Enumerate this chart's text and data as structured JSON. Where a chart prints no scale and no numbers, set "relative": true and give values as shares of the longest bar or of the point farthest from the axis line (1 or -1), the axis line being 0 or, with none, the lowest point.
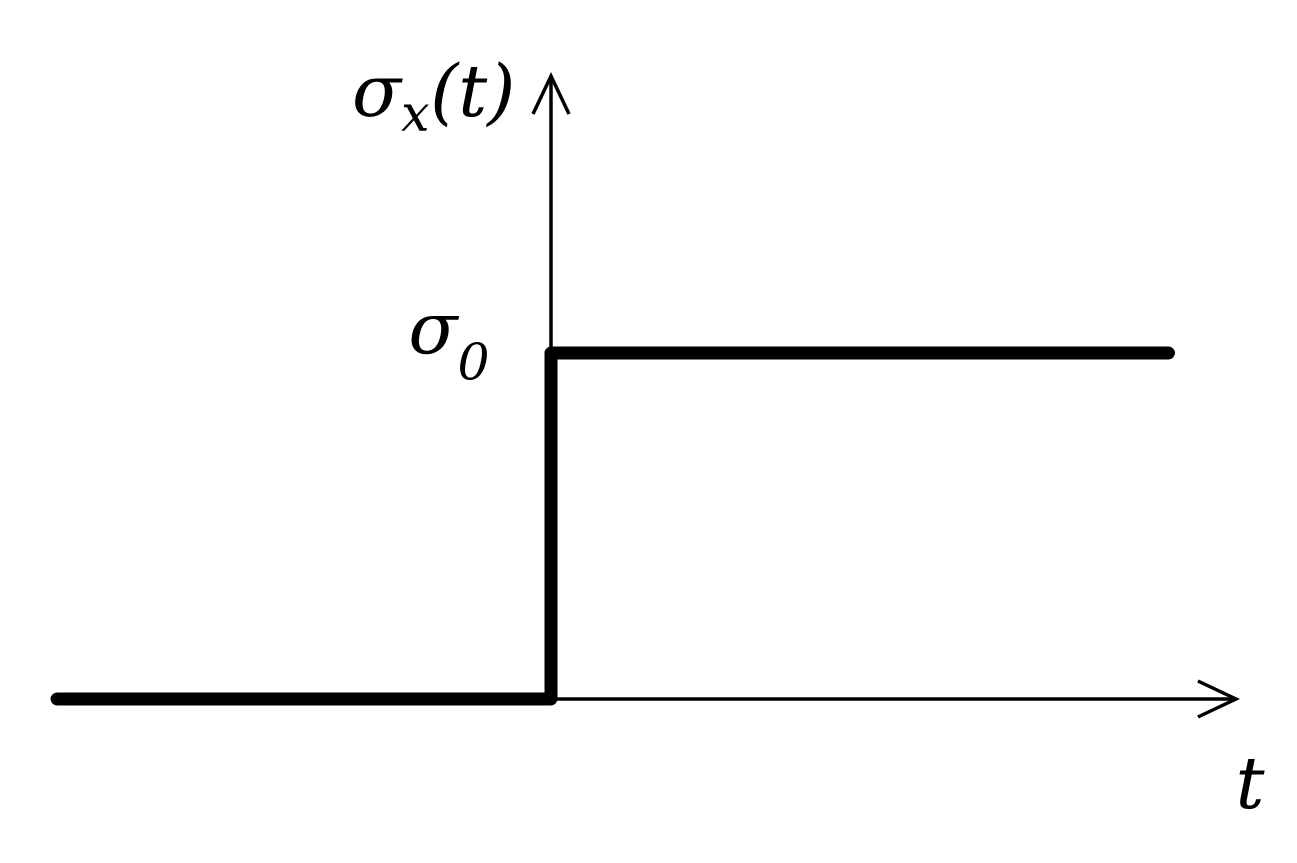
{
  "chart_data": {
    "type": "step",
    "ylabel": "σ$_{x}$(t)",
    "xlabel": "t",
    "annotations": [
      "σ$_{0}$"
    ],
    "categories": [
      null,
      null,
      null,
      null,
      null,
      null,
      null,
      null,
      null,
      null
    ],
    "values": [
      0,
      0,
      0,
      0,
      1,
      1,
      1,
      1,
      1,
      1
    ],
    "color": "#000000",
    "relative": true
  }
}
